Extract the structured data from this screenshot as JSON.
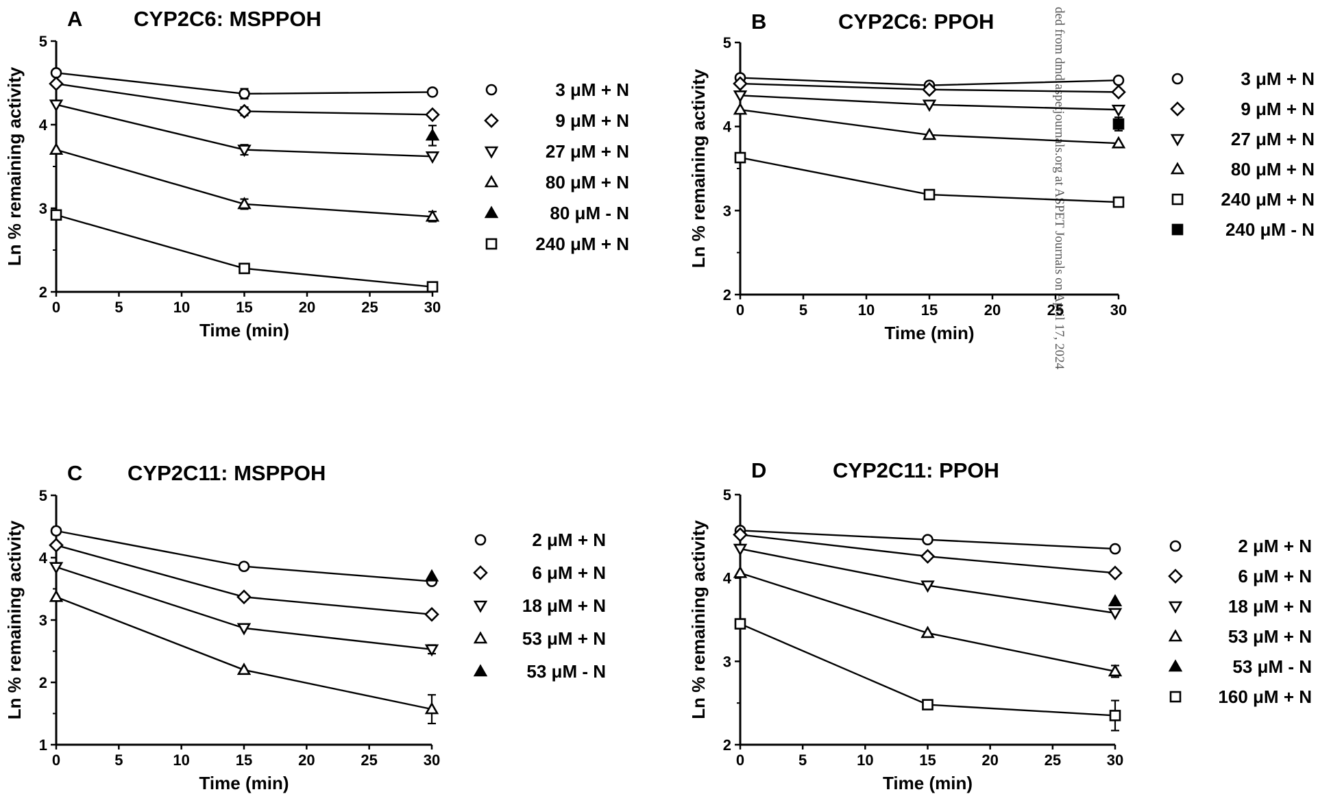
{
  "watermark": "ded from dmd.aspetjournals.org at ASPET Journals on April 17, 2024",
  "chart_data": [
    {
      "id": "A",
      "type": "line",
      "panel_label": "A",
      "title": "CYP2C6:  MSPPOH",
      "xlabel": "Time (min)",
      "ylabel": "Ln % remaining activity",
      "xlim": [
        0,
        30
      ],
      "ylim": [
        2,
        5
      ],
      "xticks": [
        "0",
        "5",
        "10",
        "15",
        "20",
        "25",
        "30"
      ],
      "yticks": [
        "2",
        "3",
        "4",
        "5"
      ],
      "x": [
        0,
        15,
        30
      ],
      "series": [
        {
          "name": "3 μM + N",
          "marker": "circle",
          "values": [
            4.62,
            4.37,
            4.39
          ],
          "err": [
            0,
            0.06,
            0
          ]
        },
        {
          "name": "9 μM + N",
          "marker": "diamond",
          "values": [
            4.49,
            4.16,
            4.12
          ],
          "err": [
            0,
            0.05,
            0
          ]
        },
        {
          "name": "27 μM + N",
          "marker": "tri-down",
          "values": [
            4.24,
            3.7,
            3.62
          ],
          "err": [
            0,
            0.06,
            0
          ]
        },
        {
          "name": "80 μM + N",
          "marker": "tri-up",
          "values": [
            3.7,
            3.05,
            2.9
          ],
          "err": [
            0,
            0.06,
            0.06
          ]
        },
        {
          "name": "80 μM - N",
          "marker": "tri-up-filled",
          "x": [
            30
          ],
          "values": [
            3.87
          ],
          "err": [
            0.12
          ],
          "line": false
        },
        {
          "name": "240 μM + N",
          "marker": "square",
          "values": [
            2.92,
            2.28,
            2.06
          ],
          "err": [
            0,
            0.03,
            0
          ]
        }
      ]
    },
    {
      "id": "B",
      "type": "line",
      "panel_label": "B",
      "title": "CYP2C6:  PPOH",
      "xlabel": "Time (min)",
      "ylabel": "Ln % remaining activity",
      "xlim": [
        0,
        30
      ],
      "ylim": [
        2,
        5
      ],
      "xticks": [
        "0",
        "5",
        "10",
        "15",
        "20",
        "25",
        "30"
      ],
      "yticks": [
        "2",
        "3",
        "4",
        "5"
      ],
      "x": [
        0,
        15,
        30
      ],
      "series": [
        {
          "name": "3 μM + N",
          "marker": "circle",
          "values": [
            4.58,
            4.49,
            4.55
          ],
          "err": [
            0,
            0,
            0
          ]
        },
        {
          "name": "9 μM + N",
          "marker": "diamond",
          "values": [
            4.51,
            4.44,
            4.41
          ],
          "err": [
            0,
            0,
            0
          ]
        },
        {
          "name": "27 μM + N",
          "marker": "tri-down",
          "values": [
            4.37,
            4.26,
            4.2
          ],
          "err": [
            0,
            0,
            0
          ]
        },
        {
          "name": "80 μM + N",
          "marker": "tri-up",
          "values": [
            4.2,
            3.9,
            3.8
          ],
          "err": [
            0,
            0,
            0
          ]
        },
        {
          "name": "240 μM + N",
          "marker": "square",
          "values": [
            3.63,
            3.19,
            3.1
          ],
          "err": [
            0,
            0,
            0
          ]
        },
        {
          "name": "240 μM -  N",
          "marker": "square-filled",
          "x": [
            30
          ],
          "values": [
            4.03
          ],
          "err": [
            0.08
          ],
          "line": false
        }
      ]
    },
    {
      "id": "C",
      "type": "line",
      "panel_label": "C",
      "title": "CYP2C11:  MSPPOH",
      "xlabel": "Time (min)",
      "ylabel": "Ln % remaining activity",
      "xlim": [
        0,
        30
      ],
      "ylim": [
        1,
        5
      ],
      "xticks": [
        "0",
        "5",
        "10",
        "15",
        "20",
        "25",
        "30"
      ],
      "yticks": [
        "1",
        "2",
        "3",
        "4",
        "5"
      ],
      "x": [
        0,
        15,
        30
      ],
      "series": [
        {
          "name": "2 μM + N",
          "marker": "circle",
          "values": [
            4.43,
            3.86,
            3.62
          ],
          "err": [
            0,
            0,
            0
          ]
        },
        {
          "name": "6 μM + N",
          "marker": "diamond",
          "values": [
            4.2,
            3.37,
            3.09
          ],
          "err": [
            0,
            0,
            0
          ]
        },
        {
          "name": "18 μM + N",
          "marker": "tri-down",
          "values": [
            3.85,
            2.87,
            2.53
          ],
          "err": [
            0,
            0,
            0.07
          ]
        },
        {
          "name": "53 μM + N",
          "marker": "tri-up",
          "values": [
            3.37,
            2.2,
            1.57
          ],
          "err": [
            0,
            0,
            0.23
          ]
        },
        {
          "name": "53 μM - N",
          "marker": "tri-up-filled",
          "x": [
            30
          ],
          "values": [
            3.7
          ],
          "err": [
            0
          ],
          "line": false
        }
      ]
    },
    {
      "id": "D",
      "type": "line",
      "panel_label": "D",
      "title": "CYP2C11: PPOH",
      "xlabel": "Time (min)",
      "ylabel": "Ln % remaining activity",
      "xlim": [
        0,
        30
      ],
      "ylim": [
        2,
        5
      ],
      "xticks": [
        "0",
        "5",
        "10",
        "15",
        "20",
        "25",
        "30"
      ],
      "yticks": [
        "2",
        "3",
        "4",
        "5"
      ],
      "x": [
        0,
        15,
        30
      ],
      "series": [
        {
          "name": "2 μM + N",
          "marker": "circle",
          "values": [
            4.57,
            4.46,
            4.35
          ],
          "err": [
            0,
            0,
            0
          ]
        },
        {
          "name": "6 μM + N",
          "marker": "diamond",
          "values": [
            4.52,
            4.26,
            4.06
          ],
          "err": [
            0,
            0,
            0
          ]
        },
        {
          "name": "18 μM + N",
          "marker": "tri-down",
          "values": [
            4.35,
            3.91,
            3.58
          ],
          "err": [
            0,
            0,
            0
          ]
        },
        {
          "name": "53 μM + N",
          "marker": "tri-up",
          "values": [
            4.06,
            3.34,
            2.88
          ],
          "err": [
            0,
            0,
            0.07
          ]
        },
        {
          "name": "53 μM - N",
          "marker": "tri-up-filled",
          "x": [
            30
          ],
          "values": [
            3.72
          ],
          "err": [
            0
          ],
          "line": false
        },
        {
          "name": "160 μM + N",
          "marker": "square",
          "values": [
            3.45,
            2.48,
            2.35
          ],
          "err": [
            0,
            0.03,
            0.18
          ]
        }
      ]
    }
  ]
}
